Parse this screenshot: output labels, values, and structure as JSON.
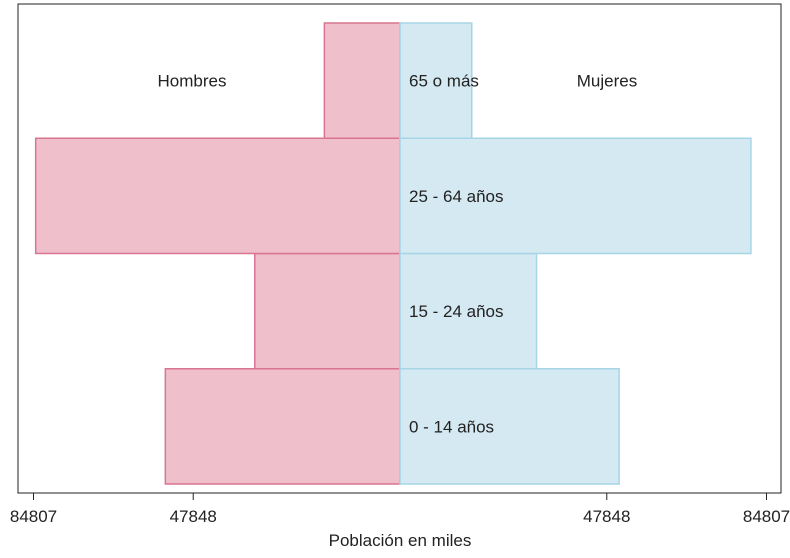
{
  "chart_data": {
    "type": "bar",
    "orientation": "horizontal-diverging",
    "title": "",
    "xlabel": "Población en miles",
    "ylabel": "",
    "xlim": [
      -84807,
      84807
    ],
    "x_ticks": [
      {
        "value": -84807,
        "label": "84807"
      },
      {
        "value": -47848,
        "label": "47848"
      },
      {
        "value": 47848,
        "label": "47848"
      },
      {
        "value": 84807,
        "label": "84807"
      }
    ],
    "categories": [
      "0 - 14 años",
      "15 - 24 años",
      "25 - 64 años",
      "65 o más"
    ],
    "series": [
      {
        "name": "Hombres",
        "values": [
          54300,
          33600,
          84300,
          17500
        ]
      },
      {
        "name": "Mujeres",
        "values": [
          50700,
          31600,
          81200,
          16600
        ]
      }
    ],
    "grid": false,
    "legend": "series names printed inside plot, top-left and top-right",
    "colors": {
      "men_fill": "#efc0cc",
      "men_stroke": "#d97591",
      "women_fill": "#d5e9f2",
      "women_stroke": "#a6d5e6",
      "axis": "#222222"
    }
  }
}
